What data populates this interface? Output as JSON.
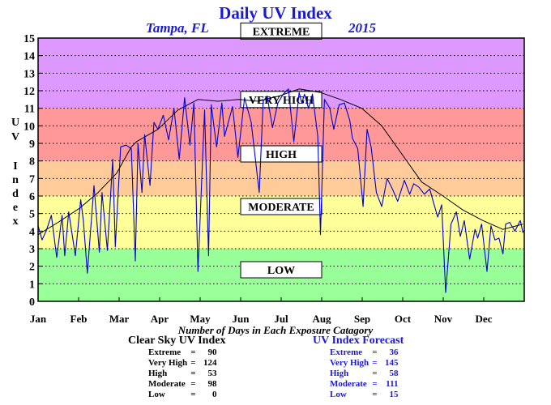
{
  "chart_data": {
    "type": "line",
    "title": "Daily UV Index",
    "subtitle_left": "Tampa, FL",
    "subtitle_right": "2015",
    "ylabel_letters": [
      "U",
      "V",
      "",
      "I",
      "n",
      "d",
      "e",
      "x"
    ],
    "xlabel": "Number of Days in Each Exposure Catagory",
    "xlim": [
      0,
      365
    ],
    "ylim": [
      0,
      15
    ],
    "yticks": [
      0,
      1,
      2,
      3,
      4,
      5,
      6,
      7,
      8,
      9,
      10,
      11,
      12,
      13,
      14,
      15
    ],
    "xtick_labels": [
      "Jan",
      "Feb",
      "Mar",
      "Apr",
      "May",
      "Jun",
      "Jul",
      "Aug",
      "Sep",
      "Oct",
      "Nov",
      "Dec"
    ],
    "grid": true,
    "bands": [
      {
        "label": "LOW",
        "range": [
          0,
          3
        ],
        "color": "#99ff99",
        "label_y": 1.8
      },
      {
        "label": "MODERATE",
        "range": [
          3,
          6
        ],
        "color": "#ffff99",
        "label_y": 5.4
      },
      {
        "label": "HIGH",
        "range": [
          6,
          8
        ],
        "color": "#ffcc99",
        "label_y": 8.4
      },
      {
        "label": "VERY HIGH",
        "range": [
          8,
          11
        ],
        "color": "#ff9999",
        "label_y": 11.5
      },
      {
        "label": "EXTREME",
        "range": [
          11,
          15
        ],
        "color": "#dd99ff",
        "label_y": 15.4
      }
    ],
    "series": [
      {
        "role": "clear-sky",
        "color": "#000000",
        "x": [
          0,
          15,
          31,
          45,
          59,
          70,
          74,
          90,
          105,
          120,
          135,
          151,
          165,
          181,
          196,
          212,
          227,
          243,
          258,
          273,
          288,
          304,
          319,
          334,
          349,
          364
        ],
        "y": [
          3.8,
          4.5,
          5.3,
          6.2,
          7.3,
          8.8,
          9.1,
          9.8,
          10.9,
          11.5,
          11.4,
          11.5,
          11.4,
          11.7,
          12.1,
          11.9,
          11.5,
          11.0,
          10.0,
          8.4,
          6.8,
          6.0,
          5.2,
          4.6,
          4.1,
          4.4
        ]
      },
      {
        "role": "forecast",
        "color": "#0000cc",
        "x": [
          0,
          3,
          6,
          10,
          14,
          18,
          20,
          23,
          28,
          32,
          34,
          37,
          42,
          46,
          48,
          52,
          56,
          58,
          62,
          66,
          70,
          73,
          75,
          78,
          80,
          84,
          87,
          90,
          94,
          98,
          102,
          106,
          110,
          114,
          117,
          120,
          125,
          128,
          130,
          134,
          138,
          140,
          146,
          150,
          155,
          160,
          166,
          169,
          172,
          176,
          180,
          184,
          188,
          192,
          196,
          198,
          200,
          203,
          206,
          210,
          212,
          215,
          219,
          222,
          226,
          230,
          234,
          236,
          240,
          244,
          247,
          250,
          254,
          258,
          262,
          266,
          270,
          275,
          279,
          282,
          286,
          290,
          294,
          297,
          300,
          303,
          306,
          310,
          314,
          317,
          320,
          324,
          328,
          330,
          333,
          337,
          340,
          343,
          346,
          349,
          351,
          354,
          358,
          362,
          364
        ],
        "y": [
          4.3,
          3.5,
          4.0,
          4.9,
          2.5,
          4.9,
          2.6,
          5.1,
          2.6,
          5.8,
          4.6,
          1.6,
          6.6,
          2.8,
          6.2,
          2.9,
          8.1,
          3.1,
          8.8,
          8.9,
          8.7,
          2.3,
          9.0,
          6.2,
          9.5,
          6.6,
          10.2,
          9.8,
          10.6,
          9.2,
          11.0,
          8.1,
          11.6,
          8.9,
          11.3,
          1.7,
          10.9,
          2.6,
          11.2,
          8.8,
          11.3,
          9.4,
          11.1,
          8.2,
          11.6,
          10.2,
          6.2,
          11.4,
          11.7,
          9.9,
          11.3,
          11.8,
          12.1,
          9.1,
          11.9,
          11.3,
          11.8,
          11.0,
          11.8,
          9.4,
          3.8,
          11.5,
          11.0,
          9.8,
          11.2,
          11.3,
          10.3,
          9.3,
          8.7,
          5.4,
          9.8,
          8.8,
          6.2,
          5.4,
          7.0,
          6.4,
          5.7,
          6.9,
          6.1,
          6.7,
          6.5,
          6.1,
          6.4,
          5.6,
          4.8,
          5.5,
          0.5,
          4.4,
          5.1,
          3.7,
          4.6,
          2.4,
          4.1,
          3.6,
          4.4,
          1.7,
          4.3,
          3.5,
          3.6,
          2.7,
          4.4,
          4.5,
          4.0,
          4.6,
          3.9
        ]
      }
    ]
  },
  "summary": {
    "clear_sky": {
      "title": "Clear Sky UV Index",
      "rows": [
        {
          "label": "Extreme",
          "sep": "=",
          "value": "90"
        },
        {
          "label": "Very High",
          "sep": "=",
          "value": "124"
        },
        {
          "label": "High",
          "sep": "=",
          "value": "53"
        },
        {
          "label": "Moderate",
          "sep": "=",
          "value": "98"
        },
        {
          "label": "Low",
          "sep": "=",
          "value": "0"
        }
      ]
    },
    "forecast": {
      "title": "UV Index Forecast",
      "rows": [
        {
          "label": "Extreme",
          "sep": "=",
          "value": "36"
        },
        {
          "label": "Very High",
          "sep": "=",
          "value": "145"
        },
        {
          "label": "High",
          "sep": "=",
          "value": "58"
        },
        {
          "label": "Moderate",
          "sep": "=",
          "value": "111"
        },
        {
          "label": "Low",
          "sep": "=",
          "value": "15"
        }
      ]
    }
  }
}
